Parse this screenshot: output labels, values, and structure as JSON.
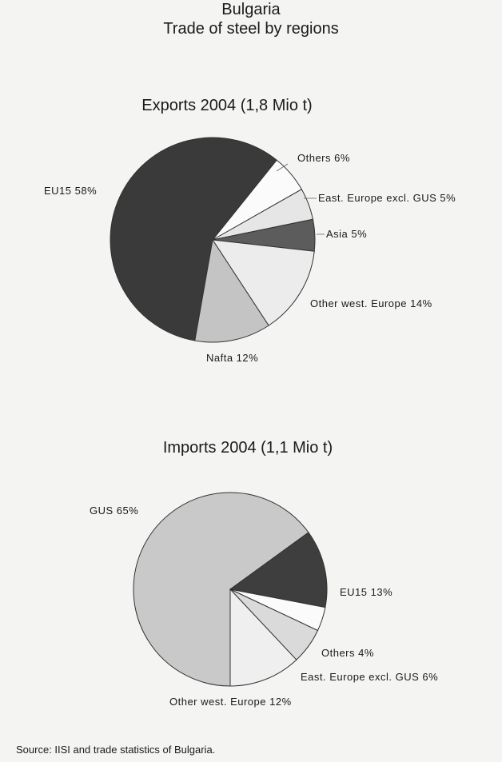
{
  "page": {
    "title_line1": "Bulgaria",
    "title_line2": "Trade of steel by regions",
    "source": "Source: IISI and trade statistics of Bulgaria."
  },
  "chart_data": [
    {
      "type": "pie",
      "title": "Exports 2004 (1,8 Mio t)",
      "series": [
        {
          "name": "EU15",
          "value": 58,
          "label": "EU15  58%",
          "color": "#3a3a3a"
        },
        {
          "name": "Others",
          "value": 6,
          "label": "Others  6%",
          "color": "#fbfbfb"
        },
        {
          "name": "East. Europe excl. GUS",
          "value": 5,
          "label": "East. Europe excl. GUS  5%",
          "color": "#e6e6e6"
        },
        {
          "name": "Asia",
          "value": 5,
          "label": "Asia  5%",
          "color": "#5c5c5c"
        },
        {
          "name": "Other west. Europe",
          "value": 14,
          "label": "Other west. Europe  14%",
          "color": "#ececec"
        },
        {
          "name": "Nafta",
          "value": 12,
          "label": "Nafta  12%",
          "color": "#c4c4c4"
        }
      ]
    },
    {
      "type": "pie",
      "title": "Imports 2004 (1,1 Mio t)",
      "series": [
        {
          "name": "GUS",
          "value": 65,
          "label": "GUS  65%",
          "color": "#c9c9c9"
        },
        {
          "name": "EU15",
          "value": 13,
          "label": "EU15  13%",
          "color": "#3e3e3e"
        },
        {
          "name": "Others",
          "value": 4,
          "label": "Others  4%",
          "color": "#fbfbfb"
        },
        {
          "name": "East. Europe excl. GUS",
          "value": 6,
          "label": "East. Europe excl. GUS  6%",
          "color": "#dadada"
        },
        {
          "name": "Other west. Europe",
          "value": 12,
          "label": "Other west. Europe  12%",
          "color": "#efefef"
        }
      ]
    }
  ]
}
